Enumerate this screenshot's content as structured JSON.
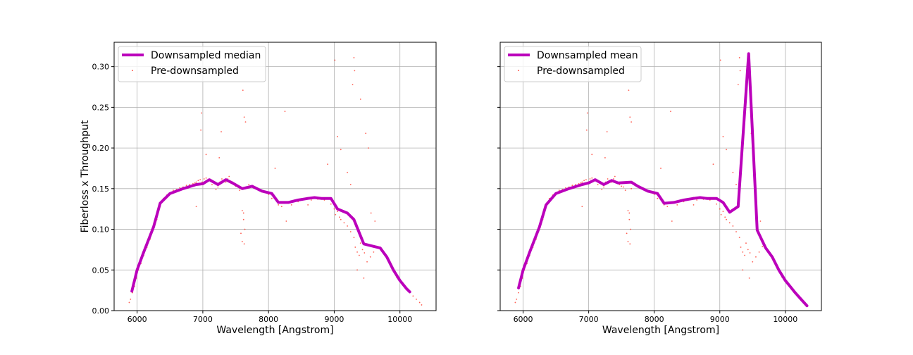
{
  "figure": {
    "background": "#ffffff"
  },
  "colors": {
    "line": "#bb00bb",
    "points": "#ff2a1a",
    "grid": "#b0b0b0",
    "axes": "#000000"
  },
  "chart_data": [
    {
      "type": "line",
      "title": "",
      "xlabel": "Wavelength [Angstrom]",
      "ylabel": "Fiberloss x Throughput",
      "xlim": [
        5650,
        10550
      ],
      "ylim": [
        0.0,
        0.33
      ],
      "xticks": [
        6000,
        7000,
        8000,
        9000,
        10000
      ],
      "xtick_labels": [
        "6000",
        "7000",
        "8000",
        "9000",
        "10000"
      ],
      "yticks": [
        0.0,
        0.05,
        0.1,
        0.15,
        0.2,
        0.25,
        0.3
      ],
      "ytick_labels": [
        "0.00",
        "0.05",
        "0.10",
        "0.15",
        "0.20",
        "0.25",
        "0.30"
      ],
      "show_yticklabels": true,
      "grid": true,
      "legend_position": "upper-left",
      "series": [
        {
          "name": "Downsampled median",
          "kind": "line",
          "color": "#bb00bb",
          "x": [
            5920,
            6000,
            6100,
            6250,
            6350,
            6500,
            6700,
            6900,
            7000,
            7100,
            7230,
            7350,
            7450,
            7600,
            7750,
            7900,
            8050,
            8150,
            8300,
            8450,
            8600,
            8700,
            8800,
            8950,
            9050,
            9200,
            9300,
            9450,
            9600,
            9700,
            9800,
            9900,
            10000,
            10100,
            10150
          ],
          "y": [
            0.024,
            0.05,
            0.072,
            0.103,
            0.132,
            0.144,
            0.15,
            0.155,
            0.156,
            0.161,
            0.155,
            0.161,
            0.157,
            0.15,
            0.153,
            0.147,
            0.144,
            0.133,
            0.133,
            0.136,
            0.138,
            0.139,
            0.138,
            0.138,
            0.125,
            0.12,
            0.112,
            0.082,
            0.079,
            0.077,
            0.066,
            0.05,
            0.037,
            0.027,
            0.023
          ]
        },
        {
          "name": "Pre-downsampled",
          "kind": "scatter",
          "color": "#ff2a1a",
          "x": [
            5880,
            5900,
            5930,
            5960,
            5990,
            6020,
            6060,
            6100,
            6150,
            6200,
            6250,
            6300,
            6350,
            6400,
            6450,
            6500,
            6550,
            6600,
            6650,
            6700,
            6750,
            6800,
            6850,
            6880,
            6900,
            6930,
            6960,
            6990,
            7020,
            7050,
            7080,
            7110,
            7140,
            7170,
            7200,
            7230,
            7260,
            7290,
            7320,
            7350,
            7380,
            7410,
            7440,
            7470,
            7500,
            7530,
            7560,
            7580,
            7600,
            7620,
            7650,
            7700,
            7750,
            7800,
            7850,
            7900,
            7950,
            8000,
            8050,
            8100,
            8150,
            8200,
            8250,
            8300,
            8350,
            8400,
            8450,
            8500,
            8550,
            8600,
            8650,
            8700,
            8750,
            8800,
            8850,
            8900,
            8950,
            9000,
            9020,
            9050,
            9080,
            9100,
            9150,
            9200,
            9250,
            9300,
            9320,
            9350,
            9380,
            9400,
            9430,
            9460,
            9500,
            9550,
            9600,
            9650,
            9700,
            9750,
            9800,
            9850,
            9900,
            9950,
            10000,
            10050,
            10100,
            10150,
            10200,
            10250,
            10300,
            10330,
            6970,
            6980,
            7280,
            7400,
            7610,
            7630,
            7650,
            8250,
            8270,
            9010,
            9050,
            9100,
            9200,
            9280,
            9300,
            9310,
            9400,
            9480,
            9520,
            9560,
            9620,
            6900,
            7050,
            7250,
            8100,
            8600,
            7600,
            7620,
            7640,
            7630,
            8900,
            9250,
            9350,
            9450
          ],
          "y": [
            0.01,
            0.014,
            0.022,
            0.03,
            0.04,
            0.05,
            0.058,
            0.068,
            0.078,
            0.088,
            0.1,
            0.112,
            0.128,
            0.138,
            0.142,
            0.145,
            0.148,
            0.149,
            0.151,
            0.152,
            0.154,
            0.155,
            0.156,
            0.157,
            0.158,
            0.16,
            0.161,
            0.158,
            0.162,
            0.163,
            0.16,
            0.161,
            0.155,
            0.158,
            0.149,
            0.152,
            0.158,
            0.162,
            0.16,
            0.158,
            0.162,
            0.159,
            0.157,
            0.155,
            0.153,
            0.152,
            0.148,
            0.095,
            0.085,
            0.12,
            0.15,
            0.155,
            0.152,
            0.15,
            0.148,
            0.146,
            0.145,
            0.143,
            0.138,
            0.137,
            0.13,
            0.128,
            0.132,
            0.134,
            0.13,
            0.136,
            0.134,
            0.137,
            0.138,
            0.139,
            0.136,
            0.138,
            0.137,
            0.139,
            0.136,
            0.138,
            0.131,
            0.125,
            0.118,
            0.122,
            0.115,
            0.112,
            0.108,
            0.104,
            0.097,
            0.09,
            0.078,
            0.072,
            0.068,
            0.083,
            0.075,
            0.071,
            0.06,
            0.066,
            0.072,
            0.079,
            0.076,
            0.071,
            0.064,
            0.057,
            0.049,
            0.041,
            0.036,
            0.032,
            0.027,
            0.022,
            0.018,
            0.014,
            0.01,
            0.007,
            0.222,
            0.243,
            0.22,
            0.165,
            0.271,
            0.238,
            0.232,
            0.245,
            0.11,
            0.308,
            0.214,
            0.198,
            0.17,
            0.278,
            0.311,
            0.295,
            0.26,
            0.218,
            0.2,
            0.12,
            0.11,
            0.128,
            0.192,
            0.188,
            0.175,
            0.13,
            0.123,
            0.112,
            0.1,
            0.082,
            0.18,
            0.155,
            0.05,
            0.04
          ]
        }
      ]
    },
    {
      "type": "line",
      "title": "",
      "xlabel": "Wavelength [Angstrom]",
      "ylabel": "",
      "xlim": [
        5650,
        10550
      ],
      "ylim": [
        0.0,
        0.33
      ],
      "xticks": [
        6000,
        7000,
        8000,
        9000,
        10000
      ],
      "xtick_labels": [
        "6000",
        "7000",
        "8000",
        "9000",
        "10000"
      ],
      "yticks": [
        0.0,
        0.05,
        0.1,
        0.15,
        0.2,
        0.25,
        0.3
      ],
      "ytick_labels": [
        "",
        "",
        "",
        "",
        "",
        "",
        ""
      ],
      "show_yticklabels": false,
      "grid": true,
      "legend_position": "upper-left",
      "series": [
        {
          "name": "Downsampled mean",
          "kind": "line",
          "color": "#bb00bb",
          "x": [
            5930,
            6000,
            6100,
            6250,
            6350,
            6500,
            6700,
            6900,
            7000,
            7100,
            7230,
            7350,
            7450,
            7650,
            7750,
            7900,
            8050,
            8150,
            8300,
            8450,
            8600,
            8700,
            8800,
            8950,
            9050,
            9150,
            9280,
            9440,
            9570,
            9700,
            9800,
            9900,
            10000,
            10100,
            10150,
            10250,
            10330
          ],
          "y": [
            0.028,
            0.05,
            0.072,
            0.103,
            0.13,
            0.144,
            0.15,
            0.155,
            0.157,
            0.161,
            0.155,
            0.16,
            0.157,
            0.158,
            0.153,
            0.147,
            0.144,
            0.132,
            0.133,
            0.136,
            0.138,
            0.139,
            0.138,
            0.138,
            0.133,
            0.121,
            0.128,
            0.316,
            0.099,
            0.077,
            0.066,
            0.05,
            0.037,
            0.027,
            0.022,
            0.013,
            0.006
          ]
        },
        {
          "name": "Pre-downsampled",
          "kind": "scatter",
          "color": "#ff2a1a",
          "x": [
            5880,
            5900,
            5930,
            5960,
            5990,
            6020,
            6060,
            6100,
            6150,
            6200,
            6250,
            6300,
            6350,
            6400,
            6450,
            6500,
            6550,
            6600,
            6650,
            6700,
            6750,
            6800,
            6850,
            6880,
            6900,
            6930,
            6960,
            6990,
            7020,
            7050,
            7080,
            7110,
            7140,
            7170,
            7200,
            7230,
            7260,
            7290,
            7320,
            7350,
            7380,
            7410,
            7440,
            7470,
            7500,
            7530,
            7560,
            7580,
            7600,
            7620,
            7650,
            7700,
            7750,
            7800,
            7850,
            7900,
            7950,
            8000,
            8050,
            8100,
            8150,
            8200,
            8250,
            8300,
            8350,
            8400,
            8450,
            8500,
            8550,
            8600,
            8650,
            8700,
            8750,
            8800,
            8850,
            8900,
            8950,
            9000,
            9020,
            9050,
            9080,
            9100,
            9150,
            9200,
            9250,
            9300,
            9320,
            9350,
            9380,
            9400,
            9430,
            9460,
            9500,
            9550,
            9600,
            9650,
            9700,
            9750,
            9800,
            9850,
            9900,
            9950,
            10000,
            10050,
            10100,
            10150,
            10200,
            10250,
            10300,
            10330,
            6970,
            6980,
            7280,
            7400,
            7610,
            7630,
            7650,
            8250,
            8270,
            9010,
            9050,
            9100,
            9200,
            9280,
            9300,
            9310,
            9400,
            9480,
            9520,
            9560,
            9620,
            6900,
            7050,
            7250,
            8100,
            8600,
            7600,
            7620,
            7640,
            7630,
            8900,
            9250,
            9350,
            9450
          ],
          "y": [
            0.01,
            0.014,
            0.022,
            0.03,
            0.04,
            0.05,
            0.058,
            0.068,
            0.078,
            0.088,
            0.1,
            0.112,
            0.128,
            0.138,
            0.142,
            0.145,
            0.148,
            0.149,
            0.151,
            0.152,
            0.154,
            0.155,
            0.156,
            0.157,
            0.158,
            0.16,
            0.161,
            0.158,
            0.162,
            0.163,
            0.16,
            0.161,
            0.155,
            0.158,
            0.149,
            0.152,
            0.158,
            0.162,
            0.16,
            0.158,
            0.162,
            0.159,
            0.157,
            0.155,
            0.153,
            0.152,
            0.148,
            0.095,
            0.085,
            0.12,
            0.15,
            0.155,
            0.152,
            0.15,
            0.148,
            0.146,
            0.145,
            0.143,
            0.138,
            0.137,
            0.13,
            0.128,
            0.132,
            0.134,
            0.13,
            0.136,
            0.134,
            0.137,
            0.138,
            0.139,
            0.136,
            0.138,
            0.137,
            0.139,
            0.136,
            0.138,
            0.131,
            0.125,
            0.118,
            0.122,
            0.115,
            0.112,
            0.108,
            0.104,
            0.097,
            0.09,
            0.078,
            0.072,
            0.068,
            0.083,
            0.075,
            0.071,
            0.06,
            0.066,
            0.072,
            0.079,
            0.076,
            0.071,
            0.064,
            0.057,
            0.049,
            0.041,
            0.036,
            0.032,
            0.027,
            0.022,
            0.018,
            0.014,
            0.01,
            0.007,
            0.222,
            0.243,
            0.22,
            0.165,
            0.271,
            0.238,
            0.232,
            0.245,
            0.11,
            0.308,
            0.214,
            0.198,
            0.17,
            0.278,
            0.311,
            0.295,
            0.26,
            0.218,
            0.2,
            0.12,
            0.11,
            0.128,
            0.192,
            0.188,
            0.175,
            0.13,
            0.123,
            0.112,
            0.1,
            0.082,
            0.18,
            0.155,
            0.05,
            0.04
          ]
        }
      ]
    }
  ]
}
